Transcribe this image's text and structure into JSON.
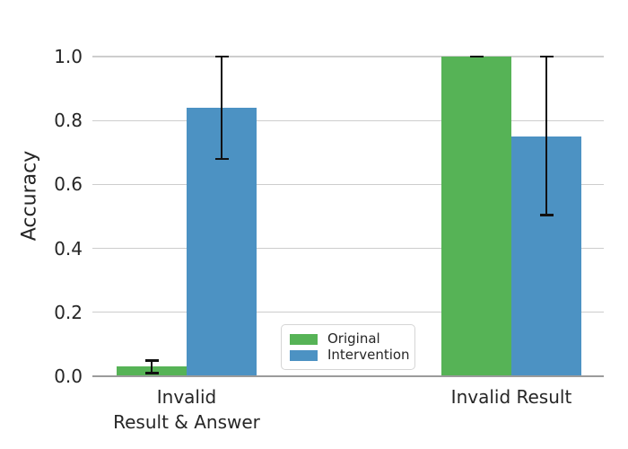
{
  "chart_data": {
    "type": "bar",
    "title": "",
    "categories": [
      "Invalid\nResult & Answer",
      "Invalid Result"
    ],
    "series": [
      {
        "name": "Original",
        "color": "#56b356",
        "values": [
          0.03,
          1.0
        ],
        "error_low": [
          0.01,
          1.0
        ],
        "error_high": [
          0.05,
          1.0
        ]
      },
      {
        "name": "Intervention",
        "color": "#4c92c3",
        "values": [
          0.84,
          0.75
        ],
        "error_low": [
          0.68,
          0.505
        ],
        "error_high": [
          1.0,
          1.0
        ]
      }
    ],
    "xlabel": "",
    "ylabel": "Accuracy",
    "ytick_labels": [
      "0.0",
      "0.2",
      "0.4",
      "0.6",
      "0.8",
      "1.0"
    ],
    "yticks": [
      0.0,
      0.2,
      0.4,
      0.6,
      0.8,
      1.0
    ],
    "ylim": [
      0.0,
      1.09
    ],
    "grid": "horizontal",
    "error_bar_color": "#111111",
    "grid_color": "#cdcdcd",
    "axis_line_color": "#9b9b9b",
    "legend": {
      "position": "inside lower center-left",
      "entries": [
        "Original",
        "Intervention"
      ]
    }
  }
}
